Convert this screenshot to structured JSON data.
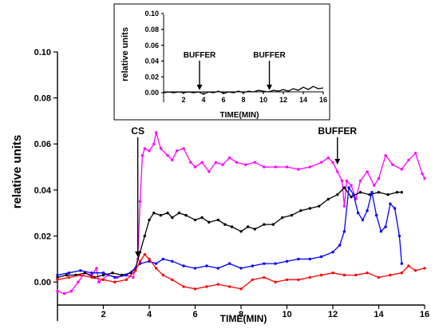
{
  "chart_data": [
    {
      "type": "line",
      "xlabel": "TIME(MIN)",
      "ylabel": "relative units",
      "xlim": [
        0,
        16
      ],
      "ylim": [
        -0.01,
        0.1
      ],
      "xticks": [
        "2",
        "4",
        "6",
        "8",
        "10",
        "12",
        "14",
        "16"
      ],
      "yticks": [
        "0.00",
        "0.02",
        "0.04",
        "0.06",
        "0.08",
        "0.10"
      ],
      "annotations": [
        {
          "text": "CS",
          "x": 3.5
        },
        {
          "text": "BUFFER",
          "x": 12.2
        }
      ],
      "series": [
        {
          "color": "#ff00ff",
          "points": [
            [
              0,
              -0.004
            ],
            [
              0.3,
              -0.005
            ],
            [
              0.6,
              -0.004
            ],
            [
              0.9,
              0.0
            ],
            [
              1.2,
              0.004
            ],
            [
              1.5,
              0.003
            ],
            [
              1.7,
              0.006
            ],
            [
              1.8,
              0.0
            ],
            [
              2.2,
              0.003
            ],
            [
              2.6,
              0.002
            ],
            [
              3.0,
              0.003
            ],
            [
              3.3,
              0.002
            ],
            [
              3.5,
              0.01
            ],
            [
              3.6,
              0.035
            ],
            [
              3.7,
              0.055
            ],
            [
              3.8,
              0.058
            ],
            [
              4.0,
              0.057
            ],
            [
              4.2,
              0.06
            ],
            [
              4.3,
              0.065
            ],
            [
              4.5,
              0.058
            ],
            [
              4.8,
              0.055
            ],
            [
              5.0,
              0.053
            ],
            [
              5.2,
              0.057
            ],
            [
              5.5,
              0.058
            ],
            [
              5.8,
              0.052
            ],
            [
              6.0,
              0.05
            ],
            [
              6.3,
              0.052
            ],
            [
              6.6,
              0.048
            ],
            [
              6.9,
              0.052
            ],
            [
              7.2,
              0.051
            ],
            [
              7.5,
              0.054
            ],
            [
              7.8,
              0.052
            ],
            [
              8.2,
              0.051
            ],
            [
              8.6,
              0.052
            ],
            [
              9.0,
              0.05
            ],
            [
              9.5,
              0.05
            ],
            [
              10.0,
              0.05
            ],
            [
              10.5,
              0.049
            ],
            [
              11.0,
              0.05
            ],
            [
              11.5,
              0.052
            ],
            [
              11.8,
              0.054
            ],
            [
              12.0,
              0.052
            ],
            [
              12.2,
              0.048
            ],
            [
              12.4,
              0.044
            ],
            [
              12.5,
              0.033
            ],
            [
              12.6,
              0.044
            ],
            [
              12.8,
              0.042
            ],
            [
              13.0,
              0.036
            ],
            [
              13.2,
              0.044
            ],
            [
              13.5,
              0.048
            ],
            [
              13.8,
              0.042
            ],
            [
              14.0,
              0.045
            ],
            [
              14.3,
              0.055
            ],
            [
              14.6,
              0.051
            ],
            [
              15.0,
              0.049
            ],
            [
              15.3,
              0.053
            ],
            [
              15.6,
              0.056
            ],
            [
              15.9,
              0.047
            ],
            [
              16.0,
              0.045
            ]
          ]
        },
        {
          "color": "#000000",
          "points": [
            [
              0,
              0.002
            ],
            [
              0.4,
              0.003
            ],
            [
              0.8,
              0.003
            ],
            [
              1.2,
              0.004
            ],
            [
              1.6,
              0.002
            ],
            [
              2.0,
              0.003
            ],
            [
              2.4,
              0.004
            ],
            [
              2.8,
              0.003
            ],
            [
              3.2,
              0.004
            ],
            [
              3.4,
              0.006
            ],
            [
              3.6,
              0.013
            ],
            [
              3.8,
              0.02
            ],
            [
              4.0,
              0.027
            ],
            [
              4.2,
              0.03
            ],
            [
              4.5,
              0.029
            ],
            [
              4.8,
              0.03
            ],
            [
              5.0,
              0.028
            ],
            [
              5.3,
              0.03
            ],
            [
              5.6,
              0.029
            ],
            [
              6.0,
              0.027
            ],
            [
              6.3,
              0.028
            ],
            [
              6.6,
              0.026
            ],
            [
              7.0,
              0.027
            ],
            [
              7.3,
              0.025
            ],
            [
              7.6,
              0.024
            ],
            [
              8.0,
              0.022
            ],
            [
              8.3,
              0.024
            ],
            [
              8.6,
              0.023
            ],
            [
              9.0,
              0.025
            ],
            [
              9.4,
              0.025
            ],
            [
              9.8,
              0.028
            ],
            [
              10.2,
              0.029
            ],
            [
              10.6,
              0.031
            ],
            [
              11.0,
              0.032
            ],
            [
              11.4,
              0.033
            ],
            [
              11.8,
              0.036
            ],
            [
              12.2,
              0.038
            ],
            [
              12.5,
              0.041
            ],
            [
              12.8,
              0.037
            ],
            [
              13.2,
              0.039
            ],
            [
              13.6,
              0.038
            ],
            [
              14.0,
              0.039
            ],
            [
              14.4,
              0.038
            ],
            [
              14.8,
              0.039
            ],
            [
              15.0,
              0.039
            ]
          ]
        },
        {
          "color": "#0000ff",
          "points": [
            [
              0,
              0.003
            ],
            [
              0.5,
              0.004
            ],
            [
              1.0,
              0.005
            ],
            [
              1.5,
              0.004
            ],
            [
              2.0,
              0.004
            ],
            [
              2.5,
              0.002
            ],
            [
              3.0,
              0.003
            ],
            [
              3.4,
              0.006
            ],
            [
              3.6,
              0.008
            ],
            [
              4.0,
              0.009
            ],
            [
              4.3,
              0.008
            ],
            [
              4.6,
              0.01
            ],
            [
              5.0,
              0.009
            ],
            [
              5.5,
              0.007
            ],
            [
              6.0,
              0.006
            ],
            [
              6.5,
              0.007
            ],
            [
              7.0,
              0.006
            ],
            [
              7.5,
              0.008
            ],
            [
              8.0,
              0.006
            ],
            [
              8.5,
              0.007
            ],
            [
              9.0,
              0.008
            ],
            [
              9.5,
              0.008
            ],
            [
              10.0,
              0.009
            ],
            [
              10.5,
              0.01
            ],
            [
              11.0,
              0.01
            ],
            [
              11.5,
              0.011
            ],
            [
              12.0,
              0.013
            ],
            [
              12.3,
              0.016
            ],
            [
              12.5,
              0.022
            ],
            [
              12.7,
              0.041
            ],
            [
              12.9,
              0.038
            ],
            [
              13.1,
              0.03
            ],
            [
              13.3,
              0.027
            ],
            [
              13.5,
              0.031
            ],
            [
              13.7,
              0.039
            ],
            [
              13.9,
              0.029
            ],
            [
              14.1,
              0.022
            ],
            [
              14.3,
              0.024
            ],
            [
              14.5,
              0.034
            ],
            [
              14.7,
              0.032
            ],
            [
              14.9,
              0.02
            ],
            [
              15.0,
              0.008
            ]
          ]
        },
        {
          "color": "#ff0000",
          "points": [
            [
              0,
              0.001
            ],
            [
              0.5,
              0.002
            ],
            [
              1.0,
              0.003
            ],
            [
              1.5,
              0.002
            ],
            [
              2.0,
              0.001
            ],
            [
              2.5,
              0.0
            ],
            [
              3.0,
              0.001
            ],
            [
              3.4,
              0.005
            ],
            [
              3.6,
              0.009
            ],
            [
              3.8,
              0.012
            ],
            [
              4.0,
              0.01
            ],
            [
              4.3,
              0.006
            ],
            [
              4.6,
              0.003
            ],
            [
              5.0,
              0.001
            ],
            [
              5.5,
              -0.002
            ],
            [
              6.0,
              -0.003
            ],
            [
              6.5,
              -0.002
            ],
            [
              7.0,
              -0.001
            ],
            [
              7.5,
              -0.002
            ],
            [
              8.0,
              -0.003
            ],
            [
              8.5,
              0.001
            ],
            [
              9.0,
              0.002
            ],
            [
              9.5,
              0.0
            ],
            [
              10.0,
              0.001
            ],
            [
              10.5,
              0.001
            ],
            [
              11.0,
              0.002
            ],
            [
              11.5,
              0.003
            ],
            [
              12.0,
              0.004
            ],
            [
              12.5,
              0.003
            ],
            [
              13.0,
              0.003
            ],
            [
              13.5,
              0.004
            ],
            [
              14.0,
              0.002
            ],
            [
              14.5,
              0.003
            ],
            [
              15.0,
              0.004
            ],
            [
              15.3,
              0.007
            ],
            [
              15.6,
              0.005
            ],
            [
              16.0,
              0.006
            ]
          ]
        }
      ]
    },
    {
      "type": "line",
      "xlabel": "TIME(MIN)",
      "ylabel": "relative units",
      "xlim": [
        0,
        16
      ],
      "ylim": [
        -0.01,
        0.1
      ],
      "xticks": [
        "2",
        "4",
        "6",
        "8",
        "10",
        "12",
        "14",
        "16"
      ],
      "yticks": [
        "0.00",
        "0.02",
        "0.04",
        "0.06",
        "0.08",
        "0.10"
      ],
      "annotations": [
        {
          "text": "BUFFER",
          "x": 3.6
        },
        {
          "text": "BUFFER",
          "x": 10.6
        }
      ],
      "series": [
        {
          "color": "#000000",
          "points": [
            [
              0,
              0.0
            ],
            [
              0.5,
              0.001
            ],
            [
              1,
              0.0
            ],
            [
              1.5,
              0.001
            ],
            [
              2,
              0.0
            ],
            [
              2.5,
              0.001
            ],
            [
              3,
              0.0
            ],
            [
              3.5,
              0.001
            ],
            [
              4,
              -0.002
            ],
            [
              4.5,
              0.001
            ],
            [
              5,
              0.0
            ],
            [
              5.5,
              0.002
            ],
            [
              6,
              -0.001
            ],
            [
              6.5,
              0.001
            ],
            [
              7,
              0.0
            ],
            [
              7.5,
              0.002
            ],
            [
              8,
              0.0
            ],
            [
              8.5,
              0.002
            ],
            [
              9,
              0.001
            ],
            [
              9.5,
              0.003
            ],
            [
              10,
              0.002
            ],
            [
              10.5,
              0.001
            ],
            [
              11,
              0.003
            ],
            [
              11.5,
              0.002
            ],
            [
              12,
              0.004
            ],
            [
              12.5,
              0.002
            ],
            [
              13,
              0.005
            ],
            [
              13.5,
              0.003
            ],
            [
              14,
              0.007
            ],
            [
              14.5,
              0.004
            ],
            [
              15,
              0.008
            ],
            [
              15.5,
              0.005
            ],
            [
              16,
              0.006
            ]
          ]
        }
      ]
    }
  ]
}
